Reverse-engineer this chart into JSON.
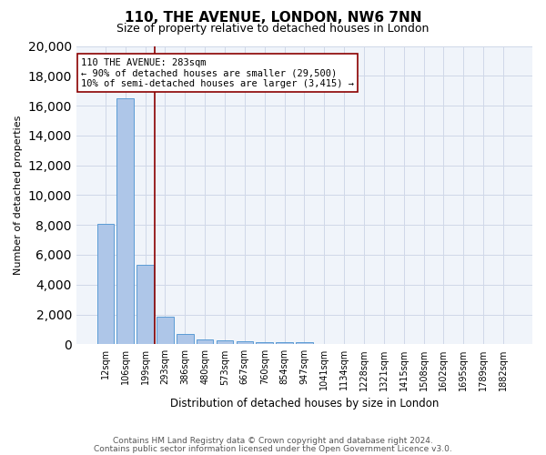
{
  "title": "110, THE AVENUE, LONDON, NW6 7NN",
  "subtitle": "Size of property relative to detached houses in London",
  "xlabel": "Distribution of detached houses by size in London",
  "ylabel": "Number of detached properties",
  "categories": [
    "12sqm",
    "106sqm",
    "199sqm",
    "293sqm",
    "386sqm",
    "480sqm",
    "573sqm",
    "667sqm",
    "760sqm",
    "854sqm",
    "947sqm",
    "1041sqm",
    "1134sqm",
    "1228sqm",
    "1321sqm",
    "1415sqm",
    "1508sqm",
    "1602sqm",
    "1695sqm",
    "1789sqm",
    "1882sqm"
  ],
  "bar_heights": [
    8100,
    16500,
    5300,
    1850,
    700,
    350,
    270,
    210,
    170,
    150,
    130,
    0,
    0,
    0,
    0,
    0,
    0,
    0,
    0,
    0,
    0
  ],
  "bar_color": "#aec6e8",
  "bar_edge_color": "#5b9bd5",
  "ylim": [
    0,
    20000
  ],
  "yticks": [
    0,
    2000,
    4000,
    6000,
    8000,
    10000,
    12000,
    14000,
    16000,
    18000,
    20000
  ],
  "vline_x": 2.5,
  "vline_color": "#8B0000",
  "annotation_text": "110 THE AVENUE: 283sqm\n← 90% of detached houses are smaller (29,500)\n10% of semi-detached houses are larger (3,415) →",
  "annotation_box_color": "#ffffff",
  "annotation_box_edge_color": "#8B0000",
  "footer_line1": "Contains HM Land Registry data © Crown copyright and database right 2024.",
  "footer_line2": "Contains public sector information licensed under the Open Government Licence v3.0.",
  "grid_color": "#d0d8e8",
  "background_color": "#f0f4fa"
}
